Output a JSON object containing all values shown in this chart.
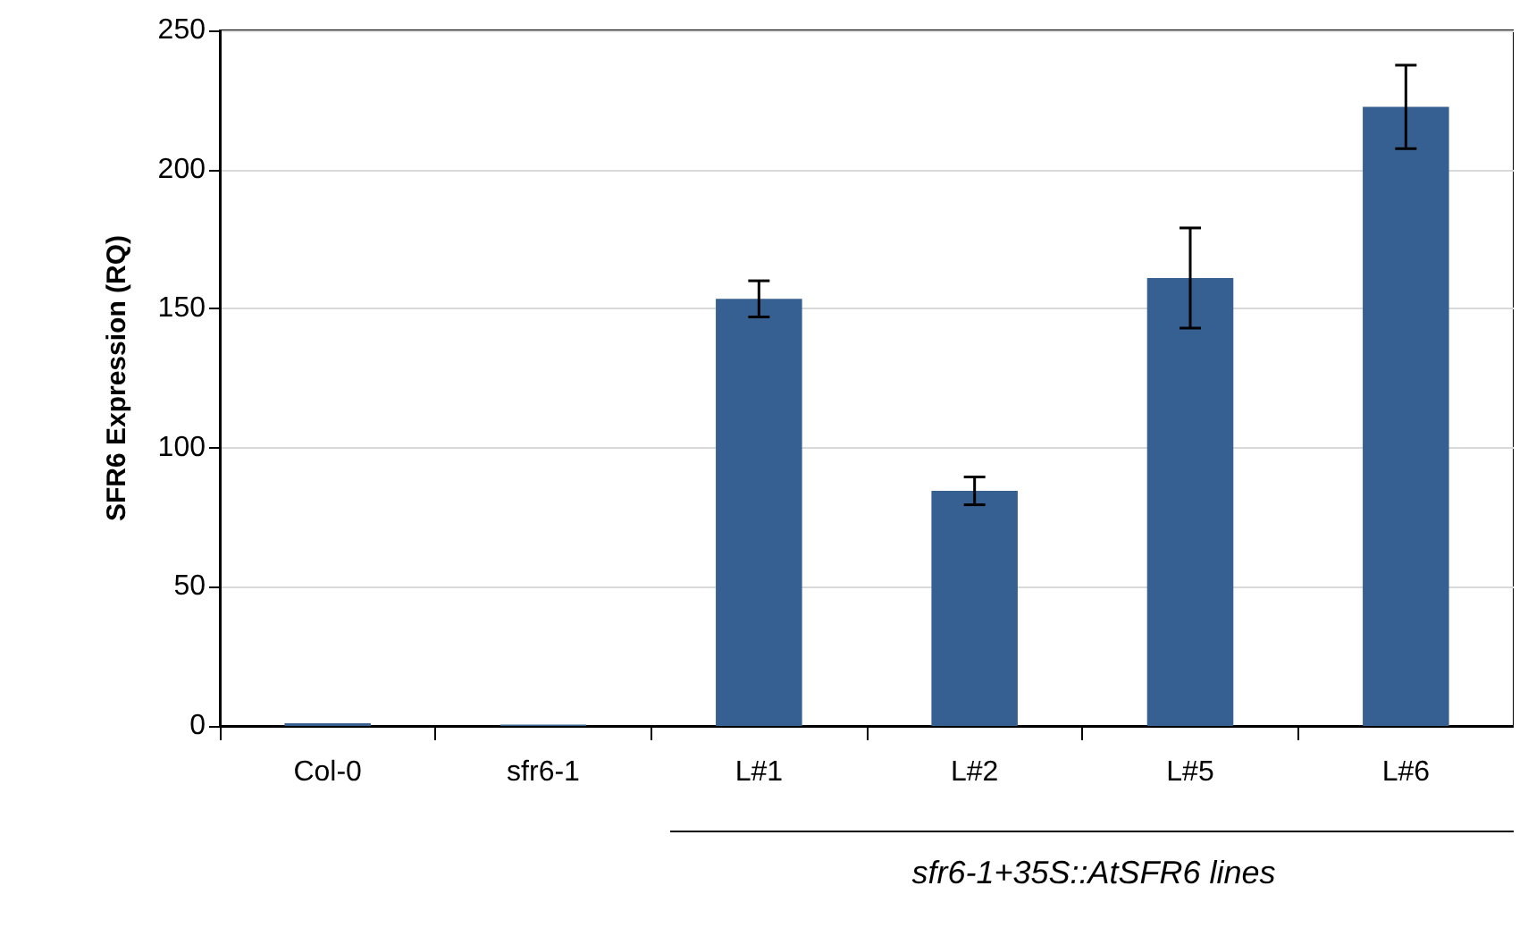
{
  "chart_data": {
    "type": "bar",
    "ylabel": "SFR6 Expression (RQ)",
    "categories": [
      "Col-0",
      "sfr6-1",
      "L#1",
      "L#2",
      "L#5",
      "L#6"
    ],
    "values": [
      1,
      0.5,
      153.5,
      84.5,
      161,
      222.5
    ],
    "errors": [
      null,
      null,
      6.5,
      5,
      18,
      15
    ],
    "color": "#376092",
    "ylim": [
      0,
      250
    ],
    "yticks": [
      0,
      50,
      100,
      150,
      200,
      250
    ],
    "grid": "y",
    "annotations": [
      "sfr6-1+35S::AtSFR6 lines"
    ]
  }
}
